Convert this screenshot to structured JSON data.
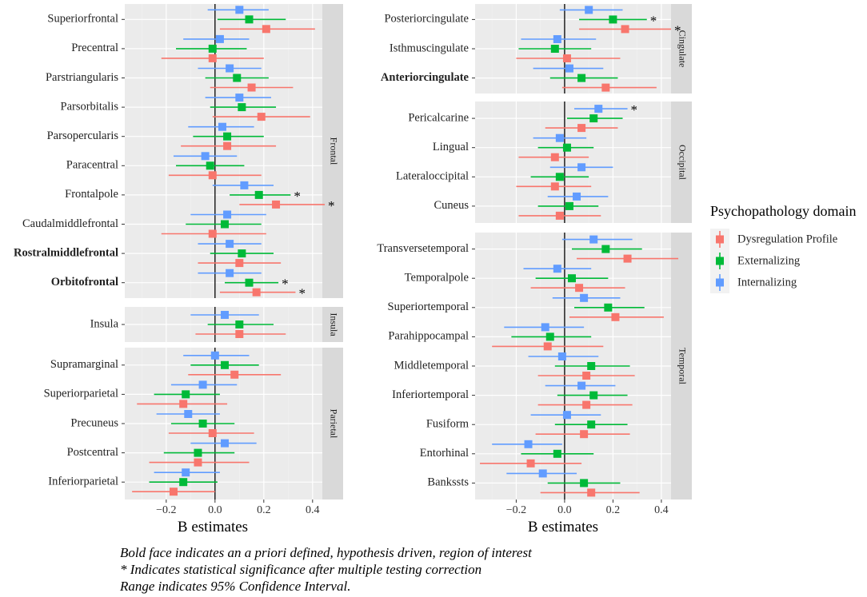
{
  "chart_data": {
    "type": "forest",
    "x_axis": {
      "label": "B estimates",
      "range": [
        -0.37,
        0.44
      ],
      "ticks": [
        -0.2,
        0.0,
        0.2,
        0.4
      ],
      "tick_labels": [
        "−0.2",
        "0.0",
        "0.2",
        "0.4"
      ]
    },
    "legend": {
      "title": "Psychopathology domain",
      "position": "right",
      "entries": [
        {
          "name": "Dysregulation Profile",
          "color": "#F8766D"
        },
        {
          "name": "Externalizing",
          "color": "#00BA38"
        },
        {
          "name": "Internalizing",
          "color": "#619CFF"
        }
      ]
    },
    "significance_marker": "*",
    "columns": [
      {
        "panels": [
          {
            "strip": "Frontal",
            "regions": [
              {
                "name": "Superiorfrontal",
                "bold": false,
                "est": {
                  "Dysregulation Profile": [
                    0.21,
                    0.02,
                    0.41
                  ],
                  "Externalizing": [
                    0.14,
                    0.01,
                    0.29
                  ],
                  "Internalizing": [
                    0.1,
                    -0.03,
                    0.22
                  ]
                }
              },
              {
                "name": "Precentral",
                "bold": false,
                "est": {
                  "Dysregulation Profile": [
                    -0.01,
                    -0.22,
                    0.2
                  ],
                  "Externalizing": [
                    -0.01,
                    -0.16,
                    0.13
                  ],
                  "Internalizing": [
                    0.02,
                    -0.13,
                    0.14
                  ]
                }
              },
              {
                "name": "Parstriangularis",
                "bold": false,
                "est": {
                  "Dysregulation Profile": [
                    0.15,
                    -0.02,
                    0.32
                  ],
                  "Externalizing": [
                    0.09,
                    -0.04,
                    0.22
                  ],
                  "Internalizing": [
                    0.06,
                    -0.07,
                    0.19
                  ]
                }
              },
              {
                "name": "Parsorbitalis",
                "bold": false,
                "est": {
                  "Dysregulation Profile": [
                    0.19,
                    -0.01,
                    0.39
                  ],
                  "Externalizing": [
                    0.11,
                    -0.02,
                    0.25
                  ],
                  "Internalizing": [
                    0.1,
                    -0.04,
                    0.23
                  ]
                }
              },
              {
                "name": "Parsopercularis",
                "bold": false,
                "est": {
                  "Dysregulation Profile": [
                    0.05,
                    -0.14,
                    0.25
                  ],
                  "Externalizing": [
                    0.05,
                    -0.09,
                    0.2
                  ],
                  "Internalizing": [
                    0.03,
                    -0.11,
                    0.16
                  ]
                }
              },
              {
                "name": "Paracentral",
                "bold": false,
                "est": {
                  "Dysregulation Profile": [
                    -0.01,
                    -0.19,
                    0.19
                  ],
                  "Externalizing": [
                    -0.02,
                    -0.16,
                    0.12
                  ],
                  "Internalizing": [
                    -0.04,
                    -0.17,
                    0.09
                  ]
                }
              },
              {
                "name": "Frontalpole",
                "bold": false,
                "est": {
                  "Dysregulation Profile": [
                    0.25,
                    0.1,
                    0.45,
                    "*"
                  ],
                  "Externalizing": [
                    0.18,
                    0.06,
                    0.31,
                    "*"
                  ],
                  "Internalizing": [
                    0.12,
                    -0.01,
                    0.24
                  ]
                }
              },
              {
                "name": "Caudalmiddlefrontal",
                "bold": false,
                "est": {
                  "Dysregulation Profile": [
                    -0.01,
                    -0.22,
                    0.21
                  ],
                  "Externalizing": [
                    0.04,
                    -0.12,
                    0.19
                  ],
                  "Internalizing": [
                    0.05,
                    -0.1,
                    0.21
                  ]
                }
              },
              {
                "name": "Rostralmiddlefrontal",
                "bold": true,
                "est": {
                  "Dysregulation Profile": [
                    0.1,
                    -0.07,
                    0.27
                  ],
                  "Externalizing": [
                    0.11,
                    -0.02,
                    0.24
                  ],
                  "Internalizing": [
                    0.06,
                    -0.07,
                    0.19
                  ]
                }
              },
              {
                "name": "Orbitofrontal",
                "bold": true,
                "est": {
                  "Dysregulation Profile": [
                    0.17,
                    0.02,
                    0.33,
                    "*"
                  ],
                  "Externalizing": [
                    0.14,
                    0.04,
                    0.26,
                    "*"
                  ],
                  "Internalizing": [
                    0.06,
                    -0.07,
                    0.19
                  ]
                }
              }
            ]
          },
          {
            "strip": "Insula",
            "regions": [
              {
                "name": "Insula",
                "bold": false,
                "est": {
                  "Dysregulation Profile": [
                    0.1,
                    -0.08,
                    0.29
                  ],
                  "Externalizing": [
                    0.1,
                    -0.03,
                    0.24
                  ],
                  "Internalizing": [
                    0.04,
                    -0.1,
                    0.18
                  ]
                }
              }
            ]
          },
          {
            "strip": "Parietal",
            "regions": [
              {
                "name": "Supramarginal",
                "bold": false,
                "est": {
                  "Dysregulation Profile": [
                    0.08,
                    -0.11,
                    0.27
                  ],
                  "Externalizing": [
                    0.04,
                    -0.1,
                    0.18
                  ],
                  "Internalizing": [
                    0.0,
                    -0.13,
                    0.14
                  ]
                }
              },
              {
                "name": "Superiorparietal",
                "bold": false,
                "est": {
                  "Dysregulation Profile": [
                    -0.13,
                    -0.32,
                    0.05
                  ],
                  "Externalizing": [
                    -0.12,
                    -0.25,
                    0.02
                  ],
                  "Internalizing": [
                    -0.05,
                    -0.18,
                    0.09
                  ]
                }
              },
              {
                "name": "Precuneus",
                "bold": false,
                "est": {
                  "Dysregulation Profile": [
                    -0.01,
                    -0.19,
                    0.16
                  ],
                  "Externalizing": [
                    -0.05,
                    -0.18,
                    0.08
                  ],
                  "Internalizing": [
                    -0.11,
                    -0.24,
                    0.02
                  ]
                }
              },
              {
                "name": "Postcentral",
                "bold": false,
                "est": {
                  "Dysregulation Profile": [
                    -0.07,
                    -0.27,
                    0.14
                  ],
                  "Externalizing": [
                    -0.07,
                    -0.21,
                    0.08
                  ],
                  "Internalizing": [
                    0.04,
                    -0.1,
                    0.17
                  ]
                }
              },
              {
                "name": "Inferiorparietal",
                "bold": false,
                "est": {
                  "Dysregulation Profile": [
                    -0.17,
                    -0.34,
                    0.0
                  ],
                  "Externalizing": [
                    -0.13,
                    -0.27,
                    0.01
                  ],
                  "Internalizing": [
                    -0.12,
                    -0.25,
                    0.02
                  ]
                }
              }
            ]
          }
        ]
      },
      {
        "panels": [
          {
            "strip": "Cingulate",
            "regions": [
              {
                "name": "Posteriorcingulate",
                "bold": false,
                "est": {
                  "Dysregulation Profile": [
                    0.25,
                    0.06,
                    0.44,
                    "*"
                  ],
                  "Externalizing": [
                    0.2,
                    0.06,
                    0.34,
                    "*"
                  ],
                  "Internalizing": [
                    0.1,
                    -0.02,
                    0.24
                  ]
                }
              },
              {
                "name": "Isthmuscingulate",
                "bold": false,
                "est": {
                  "Dysregulation Profile": [
                    0.01,
                    -0.2,
                    0.23
                  ],
                  "Externalizing": [
                    -0.04,
                    -0.19,
                    0.11
                  ],
                  "Internalizing": [
                    -0.03,
                    -0.18,
                    0.13
                  ]
                }
              },
              {
                "name": "Anteriorcingulate",
                "bold": true,
                "est": {
                  "Dysregulation Profile": [
                    0.17,
                    -0.01,
                    0.38
                  ],
                  "Externalizing": [
                    0.07,
                    -0.06,
                    0.22
                  ],
                  "Internalizing": [
                    0.02,
                    -0.13,
                    0.16
                  ]
                }
              }
            ]
          },
          {
            "strip": "Occipital",
            "regions": [
              {
                "name": "Pericalcarine",
                "bold": false,
                "est": {
                  "Dysregulation Profile": [
                    0.07,
                    -0.08,
                    0.22
                  ],
                  "Externalizing": [
                    0.12,
                    0.01,
                    0.24
                  ],
                  "Internalizing": [
                    0.14,
                    0.04,
                    0.26,
                    "*"
                  ]
                }
              },
              {
                "name": "Lingual",
                "bold": false,
                "est": {
                  "Dysregulation Profile": [
                    -0.04,
                    -0.19,
                    0.1
                  ],
                  "Externalizing": [
                    0.01,
                    -0.11,
                    0.12
                  ],
                  "Internalizing": [
                    -0.02,
                    -0.13,
                    0.09
                  ]
                }
              },
              {
                "name": "Lateraloccipital",
                "bold": false,
                "est": {
                  "Dysregulation Profile": [
                    -0.04,
                    -0.2,
                    0.11
                  ],
                  "Externalizing": [
                    -0.02,
                    -0.14,
                    0.1
                  ],
                  "Internalizing": [
                    0.07,
                    -0.06,
                    0.2
                  ]
                }
              },
              {
                "name": "Cuneus",
                "bold": false,
                "est": {
                  "Dysregulation Profile": [
                    -0.02,
                    -0.19,
                    0.15
                  ],
                  "Externalizing": [
                    0.02,
                    -0.11,
                    0.14
                  ],
                  "Internalizing": [
                    0.05,
                    -0.07,
                    0.18
                  ]
                }
              }
            ]
          },
          {
            "strip": "Temporal",
            "regions": [
              {
                "name": "Transversetemporal",
                "bold": false,
                "est": {
                  "Dysregulation Profile": [
                    0.26,
                    0.05,
                    0.47
                  ],
                  "Externalizing": [
                    0.17,
                    0.03,
                    0.32
                  ],
                  "Internalizing": [
                    0.12,
                    -0.01,
                    0.28
                  ]
                }
              },
              {
                "name": "Temporalpole",
                "bold": false,
                "est": {
                  "Dysregulation Profile": [
                    0.06,
                    -0.14,
                    0.25
                  ],
                  "Externalizing": [
                    0.03,
                    -0.12,
                    0.18
                  ],
                  "Internalizing": [
                    -0.03,
                    -0.17,
                    0.11
                  ]
                }
              },
              {
                "name": "Superiortemporal",
                "bold": false,
                "est": {
                  "Dysregulation Profile": [
                    0.21,
                    0.02,
                    0.41
                  ],
                  "Externalizing": [
                    0.18,
                    0.04,
                    0.33
                  ],
                  "Internalizing": [
                    0.08,
                    -0.05,
                    0.23
                  ]
                }
              },
              {
                "name": "Parahippocampal",
                "bold": false,
                "est": {
                  "Dysregulation Profile": [
                    -0.07,
                    -0.3,
                    0.16
                  ],
                  "Externalizing": [
                    -0.06,
                    -0.22,
                    0.11
                  ],
                  "Internalizing": [
                    -0.08,
                    -0.25,
                    0.08
                  ]
                }
              },
              {
                "name": "Middletemporal",
                "bold": false,
                "est": {
                  "Dysregulation Profile": [
                    0.09,
                    -0.11,
                    0.29
                  ],
                  "Externalizing": [
                    0.11,
                    -0.04,
                    0.27
                  ],
                  "Internalizing": [
                    -0.01,
                    -0.15,
                    0.14
                  ]
                }
              },
              {
                "name": "Inferiortemporal",
                "bold": false,
                "est": {
                  "Dysregulation Profile": [
                    0.09,
                    -0.11,
                    0.28
                  ],
                  "Externalizing": [
                    0.12,
                    -0.03,
                    0.26
                  ],
                  "Internalizing": [
                    0.07,
                    -0.08,
                    0.21
                  ]
                }
              },
              {
                "name": "Fusiform",
                "bold": false,
                "est": {
                  "Dysregulation Profile": [
                    0.08,
                    -0.12,
                    0.27
                  ],
                  "Externalizing": [
                    0.11,
                    -0.04,
                    0.26
                  ],
                  "Internalizing": [
                    0.01,
                    -0.14,
                    0.15
                  ]
                }
              },
              {
                "name": "Entorhinal",
                "bold": false,
                "est": {
                  "Dysregulation Profile": [
                    -0.14,
                    -0.35,
                    0.07
                  ],
                  "Externalizing": [
                    -0.03,
                    -0.18,
                    0.12
                  ],
                  "Internalizing": [
                    -0.15,
                    -0.3,
                    -0.01
                  ]
                }
              },
              {
                "name": "Bankssts",
                "bold": false,
                "est": {
                  "Dysregulation Profile": [
                    0.11,
                    -0.1,
                    0.31
                  ],
                  "Externalizing": [
                    0.08,
                    -0.07,
                    0.23
                  ],
                  "Internalizing": [
                    -0.09,
                    -0.24,
                    0.05
                  ]
                }
              }
            ]
          }
        ]
      }
    ]
  },
  "footnotes": [
    "Bold face indicates an a priori defined, hypothesis driven, region of interest",
    "* Indicates statistical significance after multiple testing correction",
    " Range indicates 95% Confidence Interval."
  ]
}
